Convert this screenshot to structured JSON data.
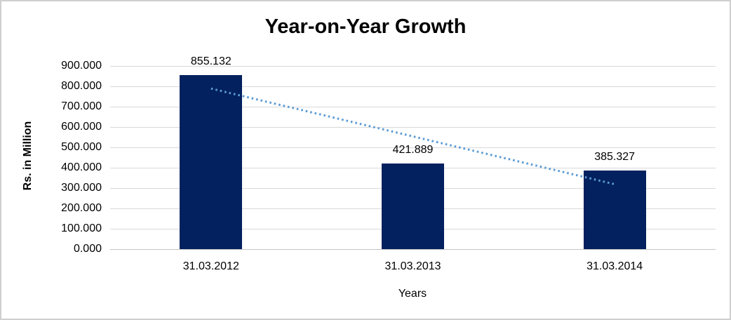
{
  "chart_data": {
    "type": "bar",
    "title": "Year-on-Year Growth",
    "xlabel": "Years",
    "ylabel": "Rs. in Million",
    "categories": [
      "31.03.2012",
      "31.03.2013",
      "31.03.2014"
    ],
    "values": [
      855.132,
      421.889,
      385.327
    ],
    "data_labels": [
      "855.132",
      "421.889",
      "385.327"
    ],
    "ylim": [
      0,
      900
    ],
    "ytick_step": 100,
    "ytick_labels": [
      "0.000",
      "100.000",
      "200.000",
      "300.000",
      "400.000",
      "500.000",
      "600.000",
      "700.000",
      "800.000",
      "900.000"
    ],
    "grid": "horizontal",
    "legend": "none",
    "colors": {
      "bar": "#02215E",
      "gridline": "#D9D9D9",
      "text": "#000000",
      "trendline": "#5B9BD5",
      "frame_border": "#CFCFCF",
      "background": "#FFFFFF"
    },
    "trendline": {
      "type": "linear",
      "style": "dotted",
      "color": "#5B9BD5",
      "start_value": 789,
      "end_value": 319
    }
  }
}
